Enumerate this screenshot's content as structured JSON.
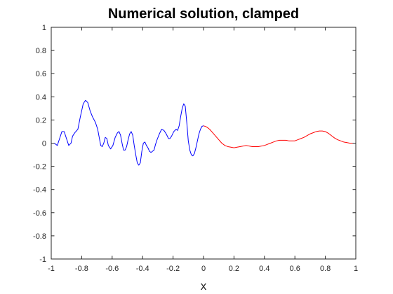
{
  "chart_data": {
    "type": "line",
    "title": "Numerical solution, clamped",
    "xlabel": "x",
    "ylabel": "",
    "xlim": [
      -1,
      1
    ],
    "ylim": [
      -1,
      1
    ],
    "grid": false,
    "legend": "none",
    "x_ticks": [
      "-1",
      "-0.8",
      "-0.6",
      "-0.4",
      "-0.2",
      "0",
      "0.2",
      "0.4",
      "0.6",
      "0.8",
      "1"
    ],
    "y_ticks": [
      "1",
      "0.8",
      "0.6",
      "0.4",
      "0.2",
      "0",
      "-0.2",
      "-0.4",
      "-0.6",
      "-0.8",
      "-1"
    ],
    "series": [
      {
        "color": "#0000ff",
        "points": [
          [
            -1.0,
            0.0
          ],
          [
            -0.98,
            0.0
          ],
          [
            -0.96,
            -0.02
          ],
          [
            -0.945,
            0.04
          ],
          [
            -0.93,
            0.1
          ],
          [
            -0.915,
            0.1
          ],
          [
            -0.9,
            0.04
          ],
          [
            -0.885,
            -0.02
          ],
          [
            -0.87,
            0.0
          ],
          [
            -0.86,
            0.06
          ],
          [
            -0.845,
            0.09
          ],
          [
            -0.825,
            0.12
          ],
          [
            -0.81,
            0.22
          ],
          [
            -0.79,
            0.34
          ],
          [
            -0.775,
            0.37
          ],
          [
            -0.76,
            0.35
          ],
          [
            -0.745,
            0.28
          ],
          [
            -0.73,
            0.23
          ],
          [
            -0.71,
            0.18
          ],
          [
            -0.695,
            0.12
          ],
          [
            -0.685,
            0.05
          ],
          [
            -0.675,
            -0.02
          ],
          [
            -0.665,
            -0.03
          ],
          [
            -0.655,
            0.0
          ],
          [
            -0.645,
            0.05
          ],
          [
            -0.635,
            0.04
          ],
          [
            -0.625,
            -0.02
          ],
          [
            -0.61,
            -0.05
          ],
          [
            -0.595,
            -0.02
          ],
          [
            -0.58,
            0.05
          ],
          [
            -0.565,
            0.09
          ],
          [
            -0.555,
            0.1
          ],
          [
            -0.545,
            0.07
          ],
          [
            -0.535,
            0.0
          ],
          [
            -0.525,
            -0.06
          ],
          [
            -0.515,
            -0.06
          ],
          [
            -0.505,
            -0.03
          ],
          [
            -0.495,
            0.03
          ],
          [
            -0.485,
            0.08
          ],
          [
            -0.475,
            0.1
          ],
          [
            -0.465,
            0.07
          ],
          [
            -0.455,
            -0.02
          ],
          [
            -0.445,
            -0.1
          ],
          [
            -0.435,
            -0.17
          ],
          [
            -0.425,
            -0.19
          ],
          [
            -0.415,
            -0.17
          ],
          [
            -0.405,
            -0.07
          ],
          [
            -0.395,
            0.0
          ],
          [
            -0.385,
            0.01
          ],
          [
            -0.375,
            -0.02
          ],
          [
            -0.365,
            -0.04
          ],
          [
            -0.355,
            -0.07
          ],
          [
            -0.345,
            -0.08
          ],
          [
            -0.335,
            -0.07
          ],
          [
            -0.325,
            -0.06
          ],
          [
            -0.315,
            -0.01
          ],
          [
            -0.305,
            0.03
          ],
          [
            -0.29,
            0.08
          ],
          [
            -0.275,
            0.12
          ],
          [
            -0.26,
            0.11
          ],
          [
            -0.245,
            0.08
          ],
          [
            -0.23,
            0.04
          ],
          [
            -0.22,
            0.04
          ],
          [
            -0.21,
            0.06
          ],
          [
            -0.195,
            0.1
          ],
          [
            -0.18,
            0.12
          ],
          [
            -0.17,
            0.11
          ],
          [
            -0.16,
            0.15
          ],
          [
            -0.15,
            0.23
          ],
          [
            -0.14,
            0.3
          ],
          [
            -0.13,
            0.34
          ],
          [
            -0.12,
            0.32
          ],
          [
            -0.11,
            0.18
          ],
          [
            -0.1,
            0.02
          ],
          [
            -0.09,
            -0.06
          ],
          [
            -0.08,
            -0.1
          ],
          [
            -0.07,
            -0.11
          ],
          [
            -0.06,
            -0.09
          ],
          [
            -0.05,
            -0.04
          ],
          [
            -0.04,
            0.02
          ],
          [
            -0.03,
            0.08
          ],
          [
            -0.02,
            0.12
          ],
          [
            -0.01,
            0.145
          ],
          [
            0.0,
            0.15
          ]
        ]
      },
      {
        "color": "#ff0000",
        "points": [
          [
            0.0,
            0.15
          ],
          [
            0.02,
            0.14
          ],
          [
            0.04,
            0.12
          ],
          [
            0.06,
            0.09
          ],
          [
            0.08,
            0.06
          ],
          [
            0.1,
            0.03
          ],
          [
            0.12,
            0.0
          ],
          [
            0.14,
            -0.02
          ],
          [
            0.16,
            -0.03
          ],
          [
            0.18,
            -0.035
          ],
          [
            0.2,
            -0.04
          ],
          [
            0.22,
            -0.035
          ],
          [
            0.24,
            -0.03
          ],
          [
            0.26,
            -0.025
          ],
          [
            0.28,
            -0.02
          ],
          [
            0.3,
            -0.025
          ],
          [
            0.32,
            -0.03
          ],
          [
            0.34,
            -0.03
          ],
          [
            0.36,
            -0.03
          ],
          [
            0.38,
            -0.025
          ],
          [
            0.4,
            -0.02
          ],
          [
            0.42,
            -0.01
          ],
          [
            0.44,
            0.0
          ],
          [
            0.46,
            0.01
          ],
          [
            0.48,
            0.02
          ],
          [
            0.5,
            0.025
          ],
          [
            0.52,
            0.025
          ],
          [
            0.54,
            0.025
          ],
          [
            0.56,
            0.02
          ],
          [
            0.58,
            0.02
          ],
          [
            0.6,
            0.02
          ],
          [
            0.62,
            0.03
          ],
          [
            0.64,
            0.04
          ],
          [
            0.66,
            0.05
          ],
          [
            0.68,
            0.065
          ],
          [
            0.7,
            0.08
          ],
          [
            0.72,
            0.09
          ],
          [
            0.74,
            0.1
          ],
          [
            0.76,
            0.105
          ],
          [
            0.78,
            0.105
          ],
          [
            0.8,
            0.1
          ],
          [
            0.82,
            0.085
          ],
          [
            0.84,
            0.065
          ],
          [
            0.86,
            0.045
          ],
          [
            0.88,
            0.03
          ],
          [
            0.9,
            0.02
          ],
          [
            0.92,
            0.01
          ],
          [
            0.94,
            0.005
          ],
          [
            0.96,
            0.0
          ],
          [
            0.98,
            0.0
          ],
          [
            1.0,
            0.0
          ]
        ]
      }
    ]
  }
}
